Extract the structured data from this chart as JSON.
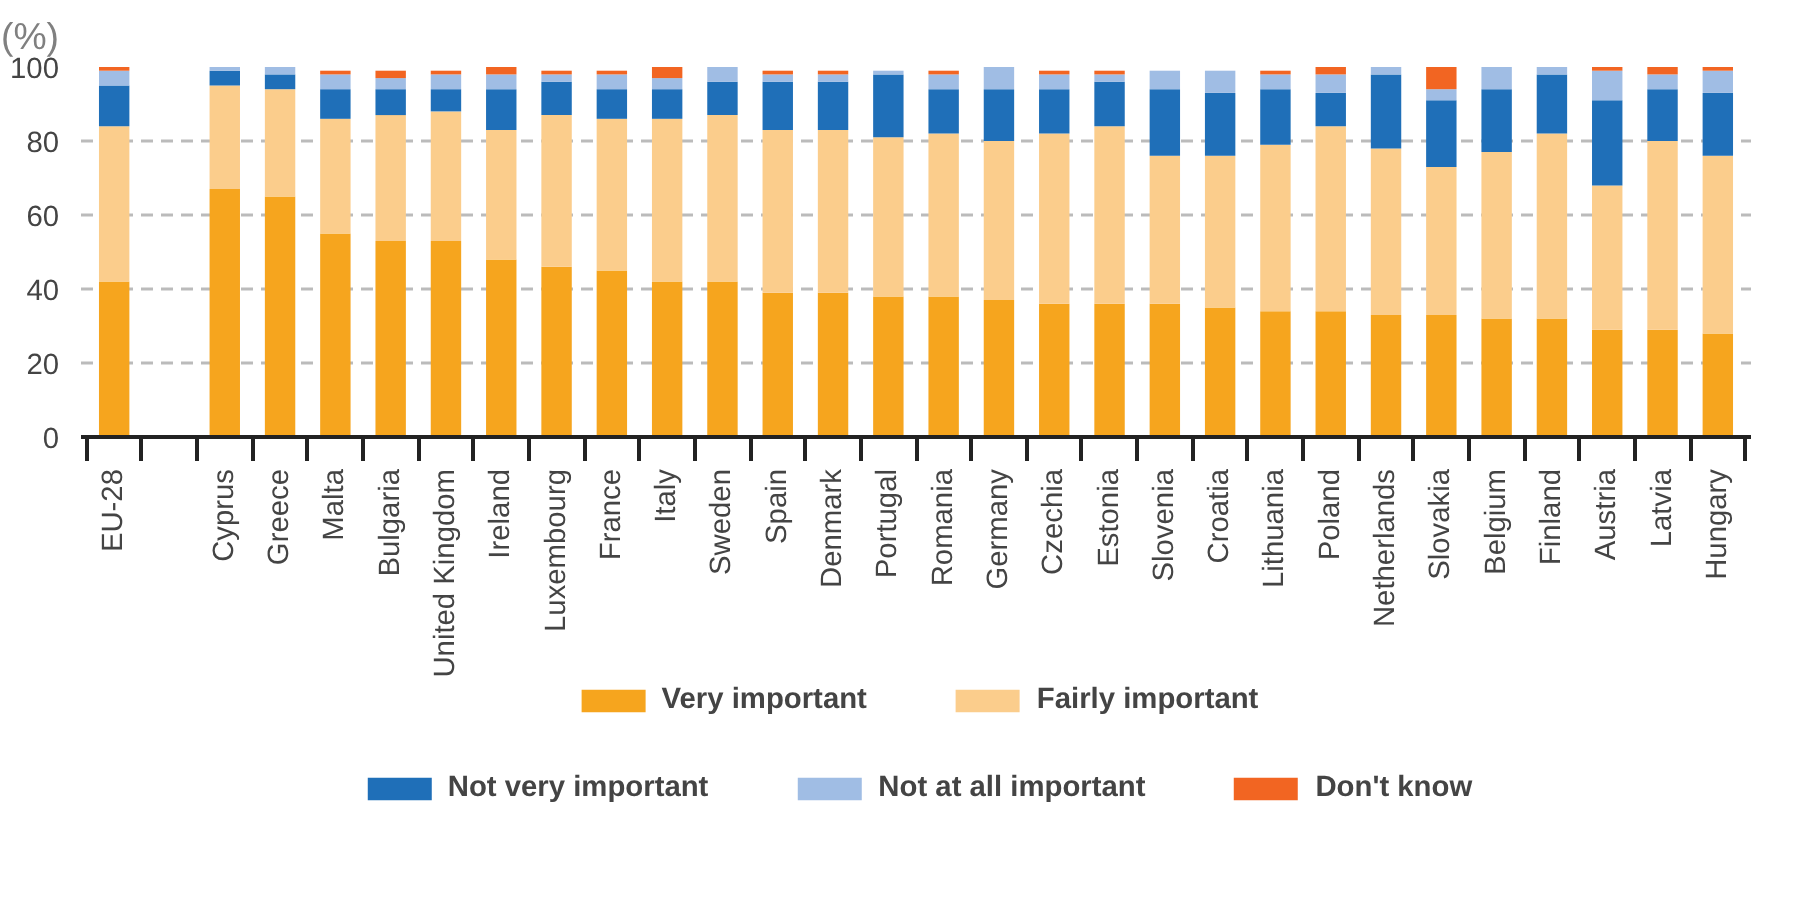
{
  "chart_data": {
    "type": "bar",
    "stacked": true,
    "ylabel": "(%)",
    "categories": [
      "EU-28",
      null,
      "Cyprus",
      "Greece",
      "Malta",
      "Bulgaria",
      "United Kingdom",
      "Ireland",
      "Luxembourg",
      "France",
      "Italy",
      "Sweden",
      "Spain",
      "Denmark",
      "Portugal",
      "Romania",
      "Germany",
      "Czechia",
      "Estonia",
      "Slovenia",
      "Croatia",
      "Lithuania",
      "Poland",
      "Netherlands",
      "Slovakia",
      "Belgium",
      "Finland",
      "Austria",
      "Latvia",
      "Hungary"
    ],
    "series": [
      {
        "name": "Very important",
        "color": "#f6a51e",
        "values": [
          42,
          null,
          67,
          65,
          55,
          53,
          53,
          48,
          46,
          45,
          42,
          42,
          39,
          39,
          38,
          38,
          37,
          36,
          36,
          36,
          35,
          34,
          34,
          33,
          33,
          32,
          32,
          29,
          29,
          28
        ]
      },
      {
        "name": "Fairly important",
        "color": "#fbcd8c",
        "values": [
          42,
          null,
          28,
          29,
          31,
          34,
          35,
          35,
          41,
          41,
          44,
          45,
          44,
          44,
          43,
          44,
          43,
          46,
          48,
          40,
          41,
          45,
          50,
          45,
          40,
          45,
          50,
          39,
          51,
          48
        ]
      },
      {
        "name": "Not very important",
        "color": "#1f6fb8",
        "values": [
          11,
          null,
          4,
          4,
          8,
          7,
          6,
          11,
          9,
          8,
          8,
          9,
          13,
          13,
          17,
          12,
          14,
          12,
          12,
          18,
          17,
          15,
          9,
          20,
          18,
          17,
          16,
          23,
          14,
          17
        ]
      },
      {
        "name": "Not at all important",
        "color": "#a0bde4",
        "values": [
          4,
          null,
          1,
          2,
          4,
          3,
          4,
          4,
          2,
          4,
          3,
          4,
          2,
          2,
          1,
          4,
          6,
          4,
          2,
          5,
          6,
          4,
          5,
          2,
          3,
          6,
          2,
          8,
          4,
          6
        ]
      },
      {
        "name": "Don't know",
        "color": "#f26522",
        "values": [
          1,
          null,
          0,
          0,
          1,
          2,
          1,
          2,
          1,
          1,
          3,
          0,
          1,
          1,
          0,
          1,
          0,
          1,
          1,
          0,
          0,
          1,
          2,
          0,
          6,
          0,
          0,
          1,
          2,
          1
        ]
      }
    ],
    "ylim": [
      0,
      100
    ],
    "yticks": [
      0,
      20,
      40,
      60,
      80,
      100
    ],
    "grid": "y",
    "legend": "bottom"
  }
}
